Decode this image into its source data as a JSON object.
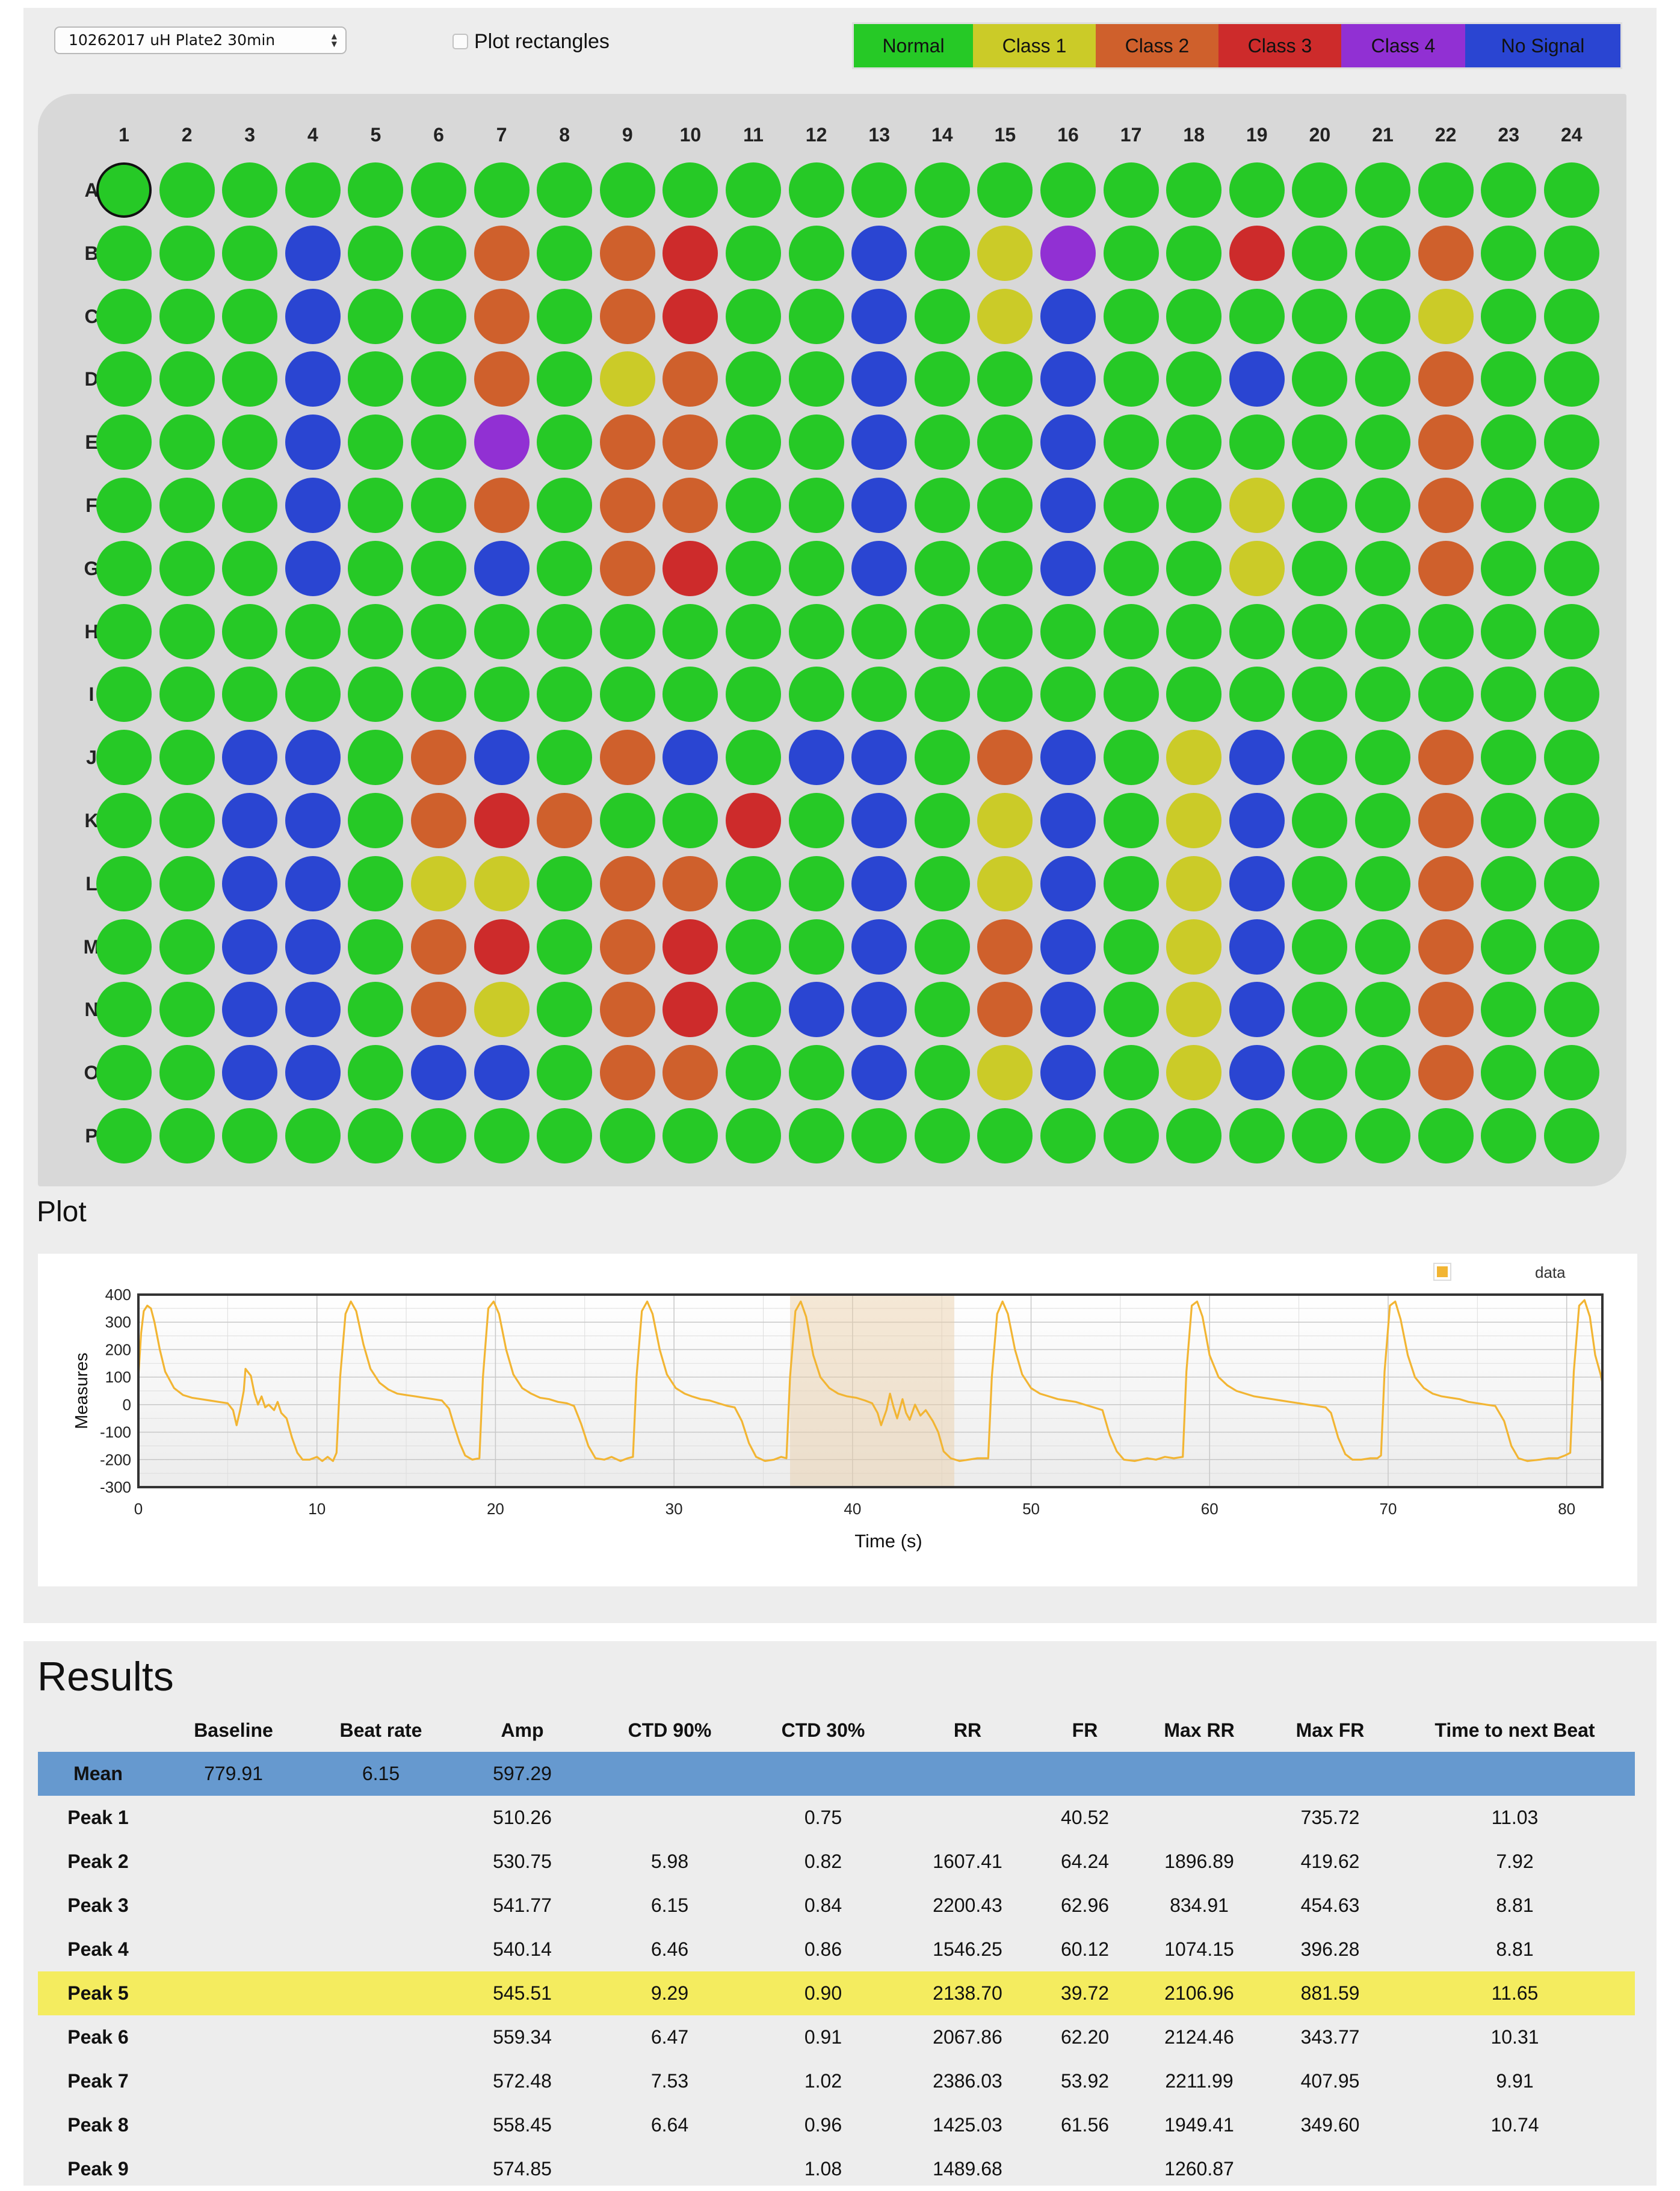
{
  "controls": {
    "plate_select_value": "10262017 uH Plate2 30min",
    "plot_rectangles_label": "Plot rectangles",
    "plot_rectangles_checked": false
  },
  "legend": [
    {
      "label": "Normal",
      "color": "#26c926"
    },
    {
      "label": "Class 1",
      "color": "#cbcb28"
    },
    {
      "label": "Class 2",
      "color": "#cf602c"
    },
    {
      "label": "Class 3",
      "color": "#cd2b2b"
    },
    {
      "label": "Class 4",
      "color": "#9130d3"
    },
    {
      "label": "No Signal",
      "color": "#2a45d2"
    }
  ],
  "plate": {
    "columns": [
      "1",
      "2",
      "3",
      "4",
      "5",
      "6",
      "7",
      "8",
      "9",
      "10",
      "11",
      "12",
      "13",
      "14",
      "15",
      "16",
      "17",
      "18",
      "19",
      "20",
      "21",
      "22",
      "23",
      "24"
    ],
    "rows": [
      "A",
      "B",
      "C",
      "D",
      "E",
      "F",
      "G",
      "H",
      "I",
      "J",
      "K",
      "L",
      "M",
      "N",
      "O",
      "P"
    ],
    "class_key": {
      "N": "Normal",
      "1": "Class 1",
      "2": "Class 2",
      "3": "Class 3",
      "4": "Class 4",
      "S": "No Signal"
    },
    "wells": {
      "A": "NNNNNNNNNNNNNNNNNNNNNNNN",
      "B": "NNNSNN2N23NNSN14NN3NN2NN",
      "C": "NNNSNN2N23NNSN1SNNNNN1NN",
      "D": "NNNSNN2N12NNSNNSNNSNN2NN",
      "E": "NNNSNN4N22NNSNNSNNNNN2NN",
      "F": "NNNSNN2N22NNSNNSNN1NN2NN",
      "G": "NNNSNNSN23NNSNNSNN1NN2NN",
      "H": "NNNNNNNNNNNNNNNNNNNNNNNN",
      "I": "NNNNNNNNNNNNNNNNNNNNNNNN",
      "J": "NNSSN2SN2SNSSN2SN1SNN2NN",
      "K": "NNSSN232NN3NSN1SN1SNN2NN",
      "L": "NNSSN11N22NNSN1SN1SNN2NN",
      "M": "NNSSN23N23NNSN2SN1SNN2NN",
      "N": "NNSSN21N23NSSN2SN1SNN2NN",
      "O": "NNSSNSSN22NNSN1SN1SNN2NN",
      "P": "NNNNNNNNNNNNNNNNNNNNNNNN"
    },
    "selected_well": "A1"
  },
  "plot": {
    "heading": "Plot",
    "chart_data": {
      "type": "line",
      "xlabel": "Time (s)",
      "ylabel": "Measures",
      "xlim": [
        0,
        82
      ],
      "ylim": [
        -300,
        400
      ],
      "x_ticks": [
        0,
        10,
        20,
        30,
        40,
        50,
        60,
        70,
        80
      ],
      "y_ticks": [
        400,
        300,
        200,
        100,
        0,
        -100,
        -200,
        -300
      ],
      "grid": true,
      "legend_position": "top-right",
      "series": [
        {
          "name": "data",
          "color": "#f2b533",
          "points": [
            [
              0,
              100
            ],
            [
              0.15,
              260
            ],
            [
              0.3,
              340
            ],
            [
              0.5,
              360
            ],
            [
              0.7,
              350
            ],
            [
              0.9,
              300
            ],
            [
              1.2,
              200
            ],
            [
              1.5,
              120
            ],
            [
              2,
              60
            ],
            [
              2.5,
              35
            ],
            [
              3,
              25
            ],
            [
              3.5,
              20
            ],
            [
              4,
              15
            ],
            [
              4.5,
              10
            ],
            [
              5,
              5
            ],
            [
              5.3,
              -20
            ],
            [
              5.5,
              -75
            ],
            [
              5.7,
              -20
            ],
            [
              5.9,
              50
            ],
            [
              6.0,
              130
            ],
            [
              6.3,
              105
            ],
            [
              6.5,
              40
            ],
            [
              6.7,
              0
            ],
            [
              6.9,
              30
            ],
            [
              7.1,
              -10
            ],
            [
              7.3,
              0
            ],
            [
              7.6,
              -20
            ],
            [
              7.8,
              10
            ],
            [
              8.0,
              -30
            ],
            [
              8.3,
              -50
            ],
            [
              8.6,
              -120
            ],
            [
              8.9,
              -175
            ],
            [
              9.2,
              -200
            ],
            [
              9.6,
              -200
            ],
            [
              10,
              -190
            ],
            [
              10.3,
              -205
            ],
            [
              10.6,
              -190
            ],
            [
              10.9,
              -205
            ],
            [
              11.1,
              -175
            ],
            [
              11.3,
              100
            ],
            [
              11.6,
              330
            ],
            [
              11.9,
              375
            ],
            [
              12.2,
              340
            ],
            [
              12.6,
              220
            ],
            [
              13,
              130
            ],
            [
              13.5,
              80
            ],
            [
              14,
              55
            ],
            [
              14.5,
              40
            ],
            [
              15,
              35
            ],
            [
              15.5,
              30
            ],
            [
              16,
              25
            ],
            [
              16.5,
              20
            ],
            [
              17,
              15
            ],
            [
              17.4,
              -15
            ],
            [
              17.7,
              -80
            ],
            [
              18.0,
              -140
            ],
            [
              18.3,
              -185
            ],
            [
              18.7,
              -200
            ],
            [
              19.1,
              -195
            ],
            [
              19.3,
              100
            ],
            [
              19.6,
              350
            ],
            [
              19.9,
              375
            ],
            [
              20.2,
              330
            ],
            [
              20.6,
              200
            ],
            [
              21,
              110
            ],
            [
              21.5,
              60
            ],
            [
              22,
              40
            ],
            [
              22.5,
              25
            ],
            [
              23,
              20
            ],
            [
              23.5,
              10
            ],
            [
              24,
              5
            ],
            [
              24.4,
              -5
            ],
            [
              24.8,
              -70
            ],
            [
              25.2,
              -150
            ],
            [
              25.6,
              -195
            ],
            [
              26.1,
              -200
            ],
            [
              26.5,
              -190
            ],
            [
              27,
              -205
            ],
            [
              27.4,
              -195
            ],
            [
              27.7,
              -190
            ],
            [
              27.9,
              100
            ],
            [
              28.2,
              340
            ],
            [
              28.5,
              375
            ],
            [
              28.8,
              330
            ],
            [
              29.2,
              200
            ],
            [
              29.6,
              110
            ],
            [
              30.1,
              60
            ],
            [
              30.6,
              40
            ],
            [
              31,
              30
            ],
            [
              31.5,
              20
            ],
            [
              32,
              15
            ],
            [
              32.5,
              5
            ],
            [
              33,
              -5
            ],
            [
              33.4,
              -10
            ],
            [
              33.8,
              -60
            ],
            [
              34.2,
              -140
            ],
            [
              34.6,
              -190
            ],
            [
              35.1,
              -205
            ],
            [
              35.6,
              -200
            ],
            [
              36,
              -190
            ],
            [
              36.3,
              -195
            ],
            [
              36.5,
              100
            ],
            [
              36.8,
              340
            ],
            [
              37.1,
              375
            ],
            [
              37.4,
              320
            ],
            [
              37.8,
              180
            ],
            [
              38.2,
              100
            ],
            [
              38.7,
              60
            ],
            [
              39.2,
              40
            ],
            [
              39.7,
              30
            ],
            [
              40.2,
              25
            ],
            [
              40.7,
              15
            ],
            [
              41.1,
              5
            ],
            [
              41.4,
              -30
            ],
            [
              41.6,
              -75
            ],
            [
              41.9,
              -20
            ],
            [
              42.1,
              40
            ],
            [
              42.3,
              -10
            ],
            [
              42.5,
              -50
            ],
            [
              42.8,
              20
            ],
            [
              43.0,
              -30
            ],
            [
              43.2,
              -55
            ],
            [
              43.5,
              0
            ],
            [
              43.8,
              -40
            ],
            [
              44.1,
              -20
            ],
            [
              44.5,
              -60
            ],
            [
              44.8,
              -100
            ],
            [
              45.1,
              -170
            ],
            [
              45.5,
              -195
            ],
            [
              46,
              -205
            ],
            [
              46.5,
              -200
            ],
            [
              47,
              -195
            ],
            [
              47.6,
              -195
            ],
            [
              47.8,
              100
            ],
            [
              48.1,
              330
            ],
            [
              48.4,
              375
            ],
            [
              48.7,
              330
            ],
            [
              49.1,
              200
            ],
            [
              49.5,
              110
            ],
            [
              50,
              60
            ],
            [
              50.5,
              40
            ],
            [
              51,
              30
            ],
            [
              51.5,
              20
            ],
            [
              52,
              15
            ],
            [
              52.5,
              10
            ],
            [
              53,
              0
            ],
            [
              53.5,
              -10
            ],
            [
              54,
              -20
            ],
            [
              54.4,
              -110
            ],
            [
              54.8,
              -170
            ],
            [
              55.2,
              -200
            ],
            [
              55.8,
              -205
            ],
            [
              56.5,
              -195
            ],
            [
              57,
              -200
            ],
            [
              57.5,
              -190
            ],
            [
              58,
              -195
            ],
            [
              58.5,
              -190
            ],
            [
              58.7,
              120
            ],
            [
              59.0,
              360
            ],
            [
              59.3,
              375
            ],
            [
              59.6,
              320
            ],
            [
              60,
              180
            ],
            [
              60.5,
              100
            ],
            [
              61,
              70
            ],
            [
              61.5,
              50
            ],
            [
              62,
              40
            ],
            [
              62.5,
              30
            ],
            [
              63,
              25
            ],
            [
              63.5,
              20
            ],
            [
              64,
              15
            ],
            [
              64.5,
              10
            ],
            [
              65,
              5
            ],
            [
              65.5,
              0
            ],
            [
              66,
              -5
            ],
            [
              66.5,
              -10
            ],
            [
              66.8,
              -30
            ],
            [
              67.2,
              -120
            ],
            [
              67.6,
              -180
            ],
            [
              68,
              -200
            ],
            [
              68.5,
              -200
            ],
            [
              69,
              -195
            ],
            [
              69.4,
              -195
            ],
            [
              69.6,
              -185
            ],
            [
              69.8,
              120
            ],
            [
              70.1,
              360
            ],
            [
              70.4,
              375
            ],
            [
              70.7,
              310
            ],
            [
              71.1,
              180
            ],
            [
              71.5,
              100
            ],
            [
              72,
              60
            ],
            [
              72.5,
              40
            ],
            [
              73,
              30
            ],
            [
              73.5,
              25
            ],
            [
              74,
              20
            ],
            [
              74.5,
              10
            ],
            [
              75,
              5
            ],
            [
              75.5,
              0
            ],
            [
              76,
              -5
            ],
            [
              76.5,
              -60
            ],
            [
              76.9,
              -150
            ],
            [
              77.3,
              -195
            ],
            [
              77.8,
              -205
            ],
            [
              78.5,
              -200
            ],
            [
              79,
              -195
            ],
            [
              79.5,
              -195
            ],
            [
              79.9,
              -185
            ],
            [
              80.2,
              -175
            ],
            [
              80.4,
              120
            ],
            [
              80.7,
              360
            ],
            [
              81.0,
              380
            ],
            [
              81.3,
              320
            ],
            [
              81.6,
              180
            ],
            [
              81.9,
              110
            ],
            [
              82,
              80
            ]
          ]
        }
      ],
      "highlight_region": {
        "x_start": 36.5,
        "x_end": 45.7
      }
    }
  },
  "results": {
    "heading": "Results",
    "columns": [
      "",
      "Baseline",
      "Beat rate",
      "Amp",
      "CTD 90%",
      "CTD 30%",
      "RR",
      "FR",
      "Max RR",
      "Max FR",
      "Time to next Beat"
    ],
    "rows": [
      {
        "label": "Mean",
        "style": "mean",
        "cells": [
          "779.91",
          "6.15",
          "597.29",
          "",
          "",
          "",
          "",
          "",
          "",
          ""
        ]
      },
      {
        "label": "Peak 1",
        "style": "",
        "cells": [
          "",
          "",
          "510.26",
          "",
          "0.75",
          "",
          "40.52",
          "",
          "735.72",
          "11.03"
        ]
      },
      {
        "label": "Peak 2",
        "style": "",
        "cells": [
          "",
          "",
          "530.75",
          "5.98",
          "0.82",
          "1607.41",
          "64.24",
          "1896.89",
          "419.62",
          "7.92"
        ]
      },
      {
        "label": "Peak 3",
        "style": "",
        "cells": [
          "",
          "",
          "541.77",
          "6.15",
          "0.84",
          "2200.43",
          "62.96",
          "834.91",
          "454.63",
          "8.81"
        ]
      },
      {
        "label": "Peak 4",
        "style": "",
        "cells": [
          "",
          "",
          "540.14",
          "6.46",
          "0.86",
          "1546.25",
          "60.12",
          "1074.15",
          "396.28",
          "8.81"
        ]
      },
      {
        "label": "Peak 5",
        "style": "highlight",
        "cells": [
          "",
          "",
          "545.51",
          "9.29",
          "0.90",
          "2138.70",
          "39.72",
          "2106.96",
          "881.59",
          "11.65"
        ]
      },
      {
        "label": "Peak 6",
        "style": "",
        "cells": [
          "",
          "",
          "559.34",
          "6.47",
          "0.91",
          "2067.86",
          "62.20",
          "2124.46",
          "343.77",
          "10.31"
        ]
      },
      {
        "label": "Peak 7",
        "style": "",
        "cells": [
          "",
          "",
          "572.48",
          "7.53",
          "1.02",
          "2386.03",
          "53.92",
          "2211.99",
          "407.95",
          "9.91"
        ]
      },
      {
        "label": "Peak 8",
        "style": "",
        "cells": [
          "",
          "",
          "558.45",
          "6.64",
          "0.96",
          "1425.03",
          "61.56",
          "1949.41",
          "349.60",
          "10.74"
        ]
      },
      {
        "label": "Peak 9",
        "style": "",
        "cells": [
          "",
          "",
          "574.85",
          "",
          "1.08",
          "1489.68",
          "",
          "1260.87",
          "",
          ""
        ]
      }
    ]
  }
}
